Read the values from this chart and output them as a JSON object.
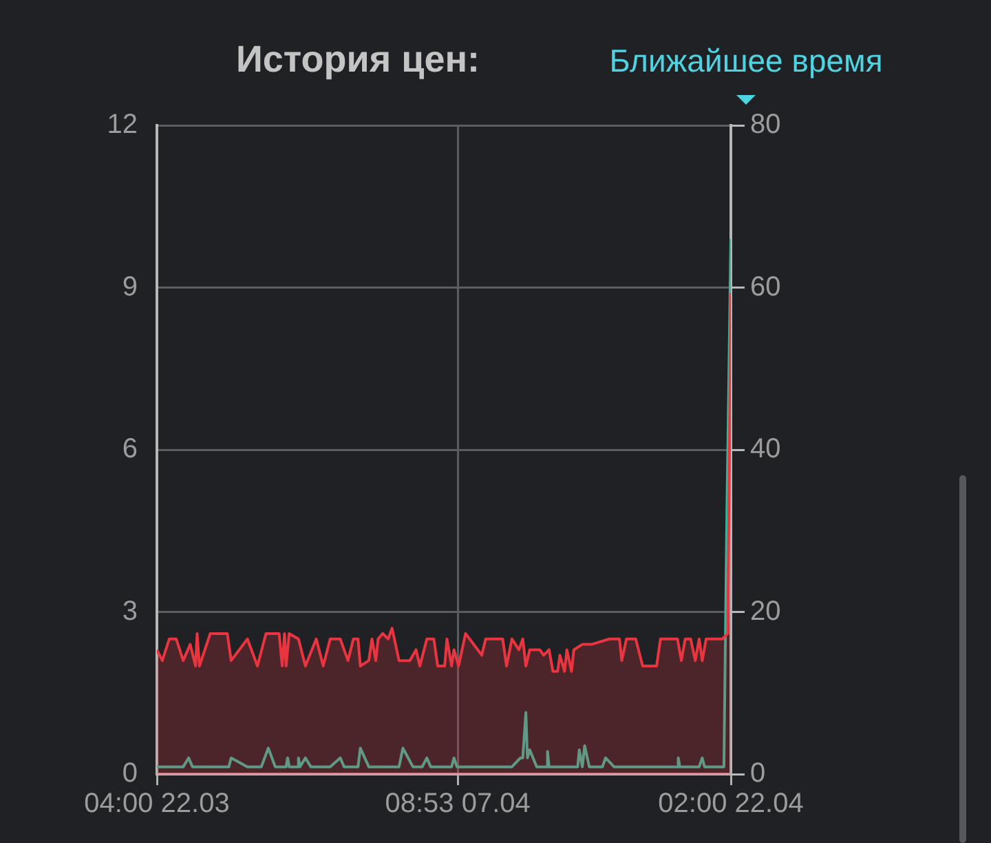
{
  "chart_data": {
    "type": "area",
    "title": "История цен:",
    "subtitle": "Ближайшее время",
    "xlim": [
      "--03-22T04:00",
      "--04-22T02:00"
    ],
    "xticks": [
      {
        "value": "--03-22T04:00",
        "label": "04:00 22.03"
      },
      {
        "value": "--04-07T08:53",
        "label": "08:53 07.04"
      },
      {
        "value": "--04-22T02:00",
        "label": "02:00 22.04"
      }
    ],
    "ylim": [
      0,
      12
    ],
    "yticks": [
      0,
      3,
      6,
      9,
      12
    ],
    "y2lim": [
      0,
      80
    ],
    "y2ticks": [
      0,
      20,
      40,
      60,
      80
    ],
    "grid": true,
    "legend": false,
    "marker": "none",
    "series": [
      {
        "type": "area",
        "axis": "y",
        "color": "#e8353f",
        "x": [
          "--03-22T04:00",
          "--03-22T11:00",
          "--03-22T20:00",
          "--03-23T05:00",
          "--03-23T14:00",
          "--03-23T23:00",
          "--03-24T06:00",
          "--03-24T08:00",
          "--03-24T11:00",
          "--03-25T01:00",
          "--03-25T23:00",
          "--03-26T04:00",
          "--03-27T01:00",
          "--03-27T14:00",
          "--03-28T01:00",
          "--03-28T18:00",
          "--03-28T22:00",
          "--03-29T01:00",
          "--03-29T03:00",
          "--03-29T07:00",
          "--03-29T19:00",
          "--03-30T04:00",
          "--03-30T18:00",
          "--03-31T03:00",
          "--03-31T12:00",
          "--04-01T01:00",
          "--04-01T11:00",
          "--04-01T18:00",
          "--04-02T00:00",
          "--04-02T03:00",
          "--04-02T14:00",
          "--04-02T18:00",
          "--04-02T23:00",
          "--04-03T02:00",
          "--04-03T08:00",
          "--04-03T15:00",
          "--04-03T20:00",
          "--04-04T05:00",
          "--04-04T19:00",
          "--04-05T03:00",
          "--04-05T08:00",
          "--04-05T17:00",
          "--04-06T02:00",
          "--04-06T07:00",
          "--04-06T16:00",
          "--04-06T19:00",
          "--04-07T01:00",
          "--04-07T04:00",
          "--04-07T10:00",
          "--04-07T19:00",
          "--04-08T16:00",
          "--04-08T21:00",
          "--04-09T10:00",
          "--04-09T19:00",
          "--04-10T00:00",
          "--04-10T07:00",
          "--04-10T16:00",
          "--04-10T21:00",
          "--04-11T01:00",
          "--04-11T06:00",
          "--04-11T19:00",
          "--04-12T00:00",
          "--04-12T07:00",
          "--04-12T12:00",
          "--04-12T18:00",
          "--04-12T21:00",
          "--04-13T03:00",
          "--04-13T06:00",
          "--04-13T12:00",
          "--04-13T15:00",
          "--04-14T02:00",
          "--04-14T14:00",
          "--04-15T13:00",
          "--04-16T02:00",
          "--04-16T05:00",
          "--04-16T11:00",
          "--04-16T23:00",
          "--04-17T08:00",
          "--04-18T02:00",
          "--04-18T07:00",
          "--04-19T05:00",
          "--04-19T10:00",
          "--04-19T15:00",
          "--04-19T22:00",
          "--04-20T04:00",
          "--04-20T09:00",
          "--04-20T13:00",
          "--04-20T18:00",
          "--04-21T01:00",
          "--04-21T15:00",
          "--04-21T22:00",
          "--04-22T02:00"
        ],
        "values": [
          2.3,
          2.1,
          2.5,
          2.5,
          2.1,
          2.4,
          2.0,
          2.6,
          2.0,
          2.6,
          2.6,
          2.1,
          2.5,
          2.0,
          2.6,
          2.6,
          2.0,
          2.6,
          2.0,
          2.6,
          2.5,
          2.0,
          2.5,
          2.0,
          2.5,
          2.5,
          2.1,
          2.5,
          2.5,
          2.0,
          2.1,
          2.5,
          2.1,
          2.5,
          2.6,
          2.5,
          2.7,
          2.1,
          2.1,
          2.3,
          2.0,
          2.5,
          2.5,
          2.0,
          2.0,
          2.5,
          2.0,
          2.3,
          2.0,
          2.6,
          2.2,
          2.5,
          2.5,
          2.5,
          2.0,
          2.5,
          2.3,
          2.5,
          2.0,
          2.3,
          2.3,
          2.2,
          2.3,
          1.9,
          1.9,
          2.2,
          1.9,
          2.3,
          1.9,
          2.3,
          2.4,
          2.4,
          2.5,
          2.5,
          2.1,
          2.5,
          2.5,
          2.0,
          2.0,
          2.5,
          2.5,
          2.1,
          2.5,
          2.5,
          2.1,
          2.5,
          2.1,
          2.5,
          2.5,
          2.5,
          2.6,
          8.9
        ]
      },
      {
        "type": "line",
        "axis": "y2",
        "color": "#3ab59a",
        "x": [
          "--03-22T04:00",
          "--03-23T14:00",
          "--03-23T21:00",
          "--03-24T02:00",
          "--03-26T01:00",
          "--03-26T04:00",
          "--03-27T01:00",
          "--03-27T19:00",
          "--03-28T04:00",
          "--03-28T13:00",
          "--03-29T03:00",
          "--03-29T05:00",
          "--03-29T07:00",
          "--03-29T18:00",
          "--03-29T19:00",
          "--03-29T21:00",
          "--03-30T04:00",
          "--03-30T11:00",
          "--03-31T12:00",
          "--04-01T01:00",
          "--04-01T06:00",
          "--04-02T00:00",
          "--04-02T03:00",
          "--04-02T14:00",
          "--04-04T05:00",
          "--04-04T10:00",
          "--04-04T23:00",
          "--04-05T11:00",
          "--04-05T17:00",
          "--04-05T22:00",
          "--04-07T01:00",
          "--04-07T04:00",
          "--04-07T08:00",
          "--04-10T07:00",
          "--04-10T18:00",
          "--04-10T21:00",
          "--04-11T01:00",
          "--04-11T03:00",
          "--04-11T06:00",
          "--04-11T15:00",
          "--04-12T04:00",
          "--04-12T05:00",
          "--04-12T07:00",
          "--04-13T20:00",
          "--04-13T22:00",
          "--04-14T02:00",
          "--04-14T05:00",
          "--04-14T11:00",
          "--04-15T04:00",
          "--04-15T08:00",
          "--04-15T19:00",
          "--04-19T05:00",
          "--04-19T06:00",
          "--04-19T08:00",
          "--04-20T09:00",
          "--04-20T13:00",
          "--04-20T16:00",
          "--04-21T17:00",
          "--04-21T21:00",
          "--04-22T02:00"
        ],
        "values": [
          0.9,
          0.9,
          2,
          0.9,
          0.9,
          2,
          0.9,
          0.9,
          3.2,
          0.9,
          0.9,
          2,
          0.9,
          0.9,
          2,
          0.9,
          2,
          0.9,
          0.9,
          2,
          0.9,
          0.9,
          3.2,
          0.9,
          0.9,
          3.2,
          0.9,
          0.9,
          2,
          0.9,
          0.9,
          2,
          0.9,
          0.9,
          2,
          2,
          7.6,
          2,
          3,
          0.9,
          0.9,
          2.8,
          0.9,
          0.9,
          3,
          0.9,
          3.5,
          0.9,
          0.9,
          2,
          0.9,
          0.9,
          2,
          0.9,
          0.9,
          2,
          0.9,
          0.9,
          33,
          66
        ]
      }
    ]
  }
}
